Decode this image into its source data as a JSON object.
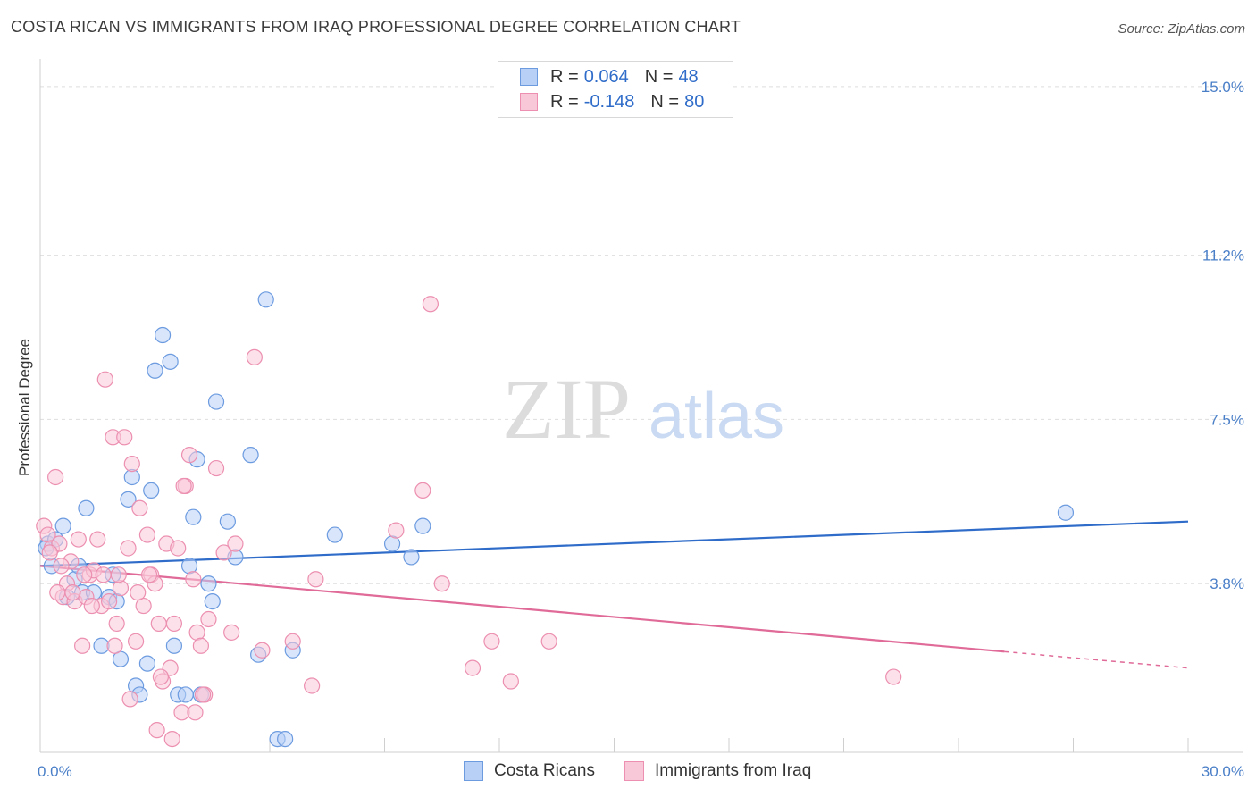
{
  "title": "COSTA RICAN VS IMMIGRANTS FROM IRAQ PROFESSIONAL DEGREE CORRELATION CHART",
  "source": "Source: ZipAtlas.com",
  "watermark": {
    "zip": "ZIP",
    "atlas": "atlas"
  },
  "legend": {
    "rows": [
      {
        "r_label": "R =",
        "r_value": "0.064",
        "n_label": "N =",
        "n_value": "48",
        "fill": "#b8d0f5",
        "stroke": "#6c9be0"
      },
      {
        "r_label": "R =",
        "r_value": "-0.148",
        "n_label": "N =",
        "n_value": "80",
        "fill": "#f9c8d8",
        "stroke": "#ec8fb0"
      }
    ]
  },
  "bottom_legend": [
    {
      "label": "Costa Ricans",
      "fill": "#b8d0f5",
      "stroke": "#6c9be0"
    },
    {
      "label": "Immigrants from Iraq",
      "fill": "#f9c8d8",
      "stroke": "#ec8fb0"
    }
  ],
  "chart_data": {
    "type": "scatter",
    "title": "COSTA RICAN VS IMMIGRANTS FROM IRAQ PROFESSIONAL DEGREE CORRELATION CHART",
    "xlabel": "",
    "ylabel": "Professional Degree",
    "xlim": [
      0,
      30
    ],
    "ylim": [
      0,
      15.5
    ],
    "x_tick_labels": [
      {
        "value": 0,
        "label": "0.0%"
      },
      {
        "value": 30,
        "label": "30.0%"
      }
    ],
    "y_tick_labels": [
      {
        "value": 3.8,
        "label": "3.8%"
      },
      {
        "value": 7.5,
        "label": "7.5%"
      },
      {
        "value": 11.2,
        "label": "11.2%"
      },
      {
        "value": 15.0,
        "label": "15.0%"
      }
    ],
    "series": [
      {
        "name": "Costa Ricans",
        "color": "#6c9be0",
        "fill": "#b8d0f5",
        "line_color": "#2f6cc9",
        "trend": {
          "x0": 0,
          "y0": 4.2,
          "x1": 30,
          "y1": 5.2,
          "solid_until": 30
        },
        "points": [
          [
            0.2,
            4.7
          ],
          [
            0.4,
            4.8
          ],
          [
            0.6,
            5.1
          ],
          [
            0.3,
            4.2
          ],
          [
            0.9,
            3.9
          ],
          [
            1.1,
            3.6
          ],
          [
            1.2,
            5.5
          ],
          [
            1.8,
            3.5
          ],
          [
            1.9,
            4.0
          ],
          [
            1.6,
            2.4
          ],
          [
            2.1,
            2.1
          ],
          [
            2.3,
            5.7
          ],
          [
            2.4,
            6.2
          ],
          [
            2.5,
            1.5
          ],
          [
            2.6,
            1.3
          ],
          [
            2.8,
            2.0
          ],
          [
            2.9,
            5.9
          ],
          [
            3.0,
            8.6
          ],
          [
            3.2,
            9.4
          ],
          [
            3.4,
            8.8
          ],
          [
            3.5,
            2.4
          ],
          [
            3.6,
            1.3
          ],
          [
            3.8,
            1.3
          ],
          [
            3.9,
            4.2
          ],
          [
            4.0,
            5.3
          ],
          [
            4.1,
            6.6
          ],
          [
            4.2,
            1.3
          ],
          [
            4.4,
            3.8
          ],
          [
            4.5,
            3.4
          ],
          [
            4.6,
            7.9
          ],
          [
            4.9,
            5.2
          ],
          [
            5.1,
            4.4
          ],
          [
            5.5,
            6.7
          ],
          [
            5.7,
            2.2
          ],
          [
            5.9,
            10.2
          ],
          [
            6.2,
            0.3
          ],
          [
            6.4,
            0.3
          ],
          [
            6.6,
            2.3
          ],
          [
            7.7,
            4.9
          ],
          [
            9.2,
            4.7
          ],
          [
            9.7,
            4.4
          ],
          [
            10.0,
            5.1
          ],
          [
            1.4,
            3.6
          ],
          [
            1.0,
            4.2
          ],
          [
            0.7,
            3.5
          ],
          [
            2.0,
            3.4
          ],
          [
            26.8,
            5.4
          ],
          [
            0.15,
            4.6
          ]
        ]
      },
      {
        "name": "Immigrants from Iraq",
        "color": "#ec8fb0",
        "fill": "#f9c8d8",
        "line_color": "#e06a98",
        "trend": {
          "x0": 0,
          "y0": 4.2,
          "x1": 30,
          "y1": 1.9,
          "solid_until": 25.2
        },
        "points": [
          [
            0.1,
            5.1
          ],
          [
            0.2,
            4.9
          ],
          [
            0.3,
            4.6
          ],
          [
            0.4,
            6.2
          ],
          [
            0.5,
            4.7
          ],
          [
            0.6,
            3.5
          ],
          [
            0.7,
            3.8
          ],
          [
            0.8,
            4.3
          ],
          [
            0.9,
            3.4
          ],
          [
            1.0,
            4.8
          ],
          [
            1.1,
            2.4
          ],
          [
            1.2,
            3.5
          ],
          [
            1.3,
            4.0
          ],
          [
            1.4,
            4.1
          ],
          [
            1.5,
            4.8
          ],
          [
            1.6,
            3.3
          ],
          [
            1.7,
            8.4
          ],
          [
            1.8,
            3.4
          ],
          [
            1.9,
            7.1
          ],
          [
            2.0,
            2.9
          ],
          [
            2.1,
            3.7
          ],
          [
            2.2,
            7.1
          ],
          [
            2.3,
            4.6
          ],
          [
            2.4,
            6.5
          ],
          [
            2.5,
            2.5
          ],
          [
            2.6,
            5.5
          ],
          [
            2.7,
            3.3
          ],
          [
            2.8,
            4.9
          ],
          [
            2.9,
            4.0
          ],
          [
            3.0,
            3.8
          ],
          [
            3.1,
            2.9
          ],
          [
            3.2,
            1.6
          ],
          [
            3.3,
            4.7
          ],
          [
            3.4,
            1.9
          ],
          [
            3.5,
            2.9
          ],
          [
            3.6,
            4.6
          ],
          [
            3.7,
            0.9
          ],
          [
            3.8,
            6.0
          ],
          [
            3.9,
            6.7
          ],
          [
            4.0,
            3.9
          ],
          [
            4.1,
            2.7
          ],
          [
            4.2,
            2.4
          ],
          [
            4.3,
            1.3
          ],
          [
            4.4,
            3.0
          ],
          [
            4.6,
            6.4
          ],
          [
            4.8,
            4.5
          ],
          [
            5.0,
            2.7
          ],
          [
            5.1,
            4.7
          ],
          [
            5.6,
            8.9
          ],
          [
            5.8,
            2.3
          ],
          [
            6.6,
            2.5
          ],
          [
            7.1,
            1.5
          ],
          [
            7.2,
            3.9
          ],
          [
            9.3,
            5.0
          ],
          [
            10.0,
            5.9
          ],
          [
            10.5,
            3.8
          ],
          [
            10.2,
            10.1
          ],
          [
            11.3,
            1.9
          ],
          [
            11.8,
            2.5
          ],
          [
            12.3,
            1.6
          ],
          [
            13.3,
            2.5
          ],
          [
            22.3,
            1.7
          ],
          [
            0.25,
            4.5
          ],
          [
            0.55,
            4.2
          ],
          [
            0.85,
            3.6
          ],
          [
            1.15,
            4.0
          ],
          [
            1.35,
            3.3
          ],
          [
            1.65,
            4.0
          ],
          [
            2.05,
            4.0
          ],
          [
            2.35,
            1.2
          ],
          [
            2.55,
            3.6
          ],
          [
            2.85,
            4.0
          ],
          [
            3.05,
            0.5
          ],
          [
            3.15,
            1.7
          ],
          [
            3.45,
            0.3
          ],
          [
            3.75,
            6.0
          ],
          [
            4.05,
            0.9
          ],
          [
            4.25,
            1.3
          ],
          [
            0.45,
            3.6
          ],
          [
            1.95,
            2.4
          ]
        ]
      }
    ]
  }
}
